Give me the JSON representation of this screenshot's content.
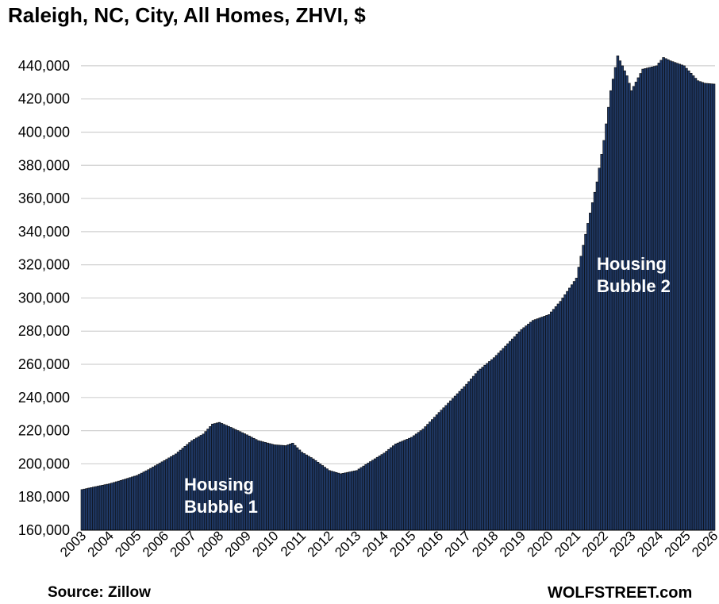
{
  "chart_data": {
    "type": "bar",
    "title": "Raleigh, NC, City, All Homes, ZHVI, $",
    "xlabel": "",
    "ylabel": "",
    "ylim": [
      160000,
      450000
    ],
    "yticks": [
      160000,
      180000,
      200000,
      220000,
      240000,
      260000,
      280000,
      300000,
      320000,
      340000,
      360000,
      380000,
      400000,
      420000,
      440000
    ],
    "ytick_labels": [
      "160,000",
      "180,000",
      "200,000",
      "220,000",
      "240,000",
      "260,000",
      "280,000",
      "300,000",
      "320,000",
      "340,000",
      "360,000",
      "380,000",
      "400,000",
      "420,000",
      "440,000"
    ],
    "xtick_labels": [
      "2003",
      "2004",
      "2005",
      "2006",
      "2007",
      "2008",
      "2009",
      "2010",
      "2011",
      "2012",
      "2013",
      "2014",
      "2015",
      "2016",
      "2017",
      "2018",
      "2019",
      "2020",
      "2021",
      "2022",
      "2023",
      "2024",
      "2025",
      "2026"
    ],
    "frequency": "monthly",
    "start": "2003-01",
    "end": "2026-01",
    "anchors": [
      [
        "2003-01",
        184500
      ],
      [
        "2003-06",
        186000
      ],
      [
        "2004-01",
        188000
      ],
      [
        "2004-06",
        190000
      ],
      [
        "2005-01",
        193000
      ],
      [
        "2005-06",
        196500
      ],
      [
        "2006-01",
        202000
      ],
      [
        "2006-06",
        206000
      ],
      [
        "2007-01",
        214000
      ],
      [
        "2007-06",
        218000
      ],
      [
        "2007-10",
        224000
      ],
      [
        "2008-01",
        225000
      ],
      [
        "2008-06",
        222000
      ],
      [
        "2009-01",
        217500
      ],
      [
        "2009-06",
        214000
      ],
      [
        "2010-01",
        211500
      ],
      [
        "2010-06",
        211000
      ],
      [
        "2010-09",
        212500
      ],
      [
        "2011-01",
        207000
      ],
      [
        "2011-06",
        203000
      ],
      [
        "2012-01",
        196000
      ],
      [
        "2012-06",
        194000
      ],
      [
        "2013-01",
        196000
      ],
      [
        "2013-06",
        200500
      ],
      [
        "2014-01",
        206500
      ],
      [
        "2014-06",
        212000
      ],
      [
        "2015-01",
        216000
      ],
      [
        "2015-06",
        221000
      ],
      [
        "2016-01",
        231000
      ],
      [
        "2016-06",
        238000
      ],
      [
        "2017-01",
        248000
      ],
      [
        "2017-06",
        256000
      ],
      [
        "2018-01",
        264000
      ],
      [
        "2018-06",
        271000
      ],
      [
        "2019-01",
        281000
      ],
      [
        "2019-06",
        286500
      ],
      [
        "2020-01",
        290000
      ],
      [
        "2020-06",
        298000
      ],
      [
        "2021-01",
        312000
      ],
      [
        "2021-06",
        345000
      ],
      [
        "2021-10",
        370000
      ],
      [
        "2022-01",
        395000
      ],
      [
        "2022-04",
        425000
      ],
      [
        "2022-07",
        446000
      ],
      [
        "2022-11",
        434000
      ],
      [
        "2023-01",
        425000
      ],
      [
        "2023-06",
        438000
      ],
      [
        "2023-12",
        440000
      ],
      [
        "2024-03",
        445000
      ],
      [
        "2024-06",
        443000
      ],
      [
        "2024-12",
        440000
      ],
      [
        "2025-06",
        431000
      ],
      [
        "2025-09",
        429500
      ],
      [
        "2026-01",
        429000
      ]
    ],
    "bar_color": "#1F3864",
    "gridlines": true,
    "annotations": [
      {
        "lines": [
          "Housing",
          "Bubble 1"
        ]
      },
      {
        "lines": [
          "Housing",
          "Bubble 2"
        ]
      }
    ]
  },
  "source": "Source: Zillow",
  "brand": "WOLFSTREET.com"
}
